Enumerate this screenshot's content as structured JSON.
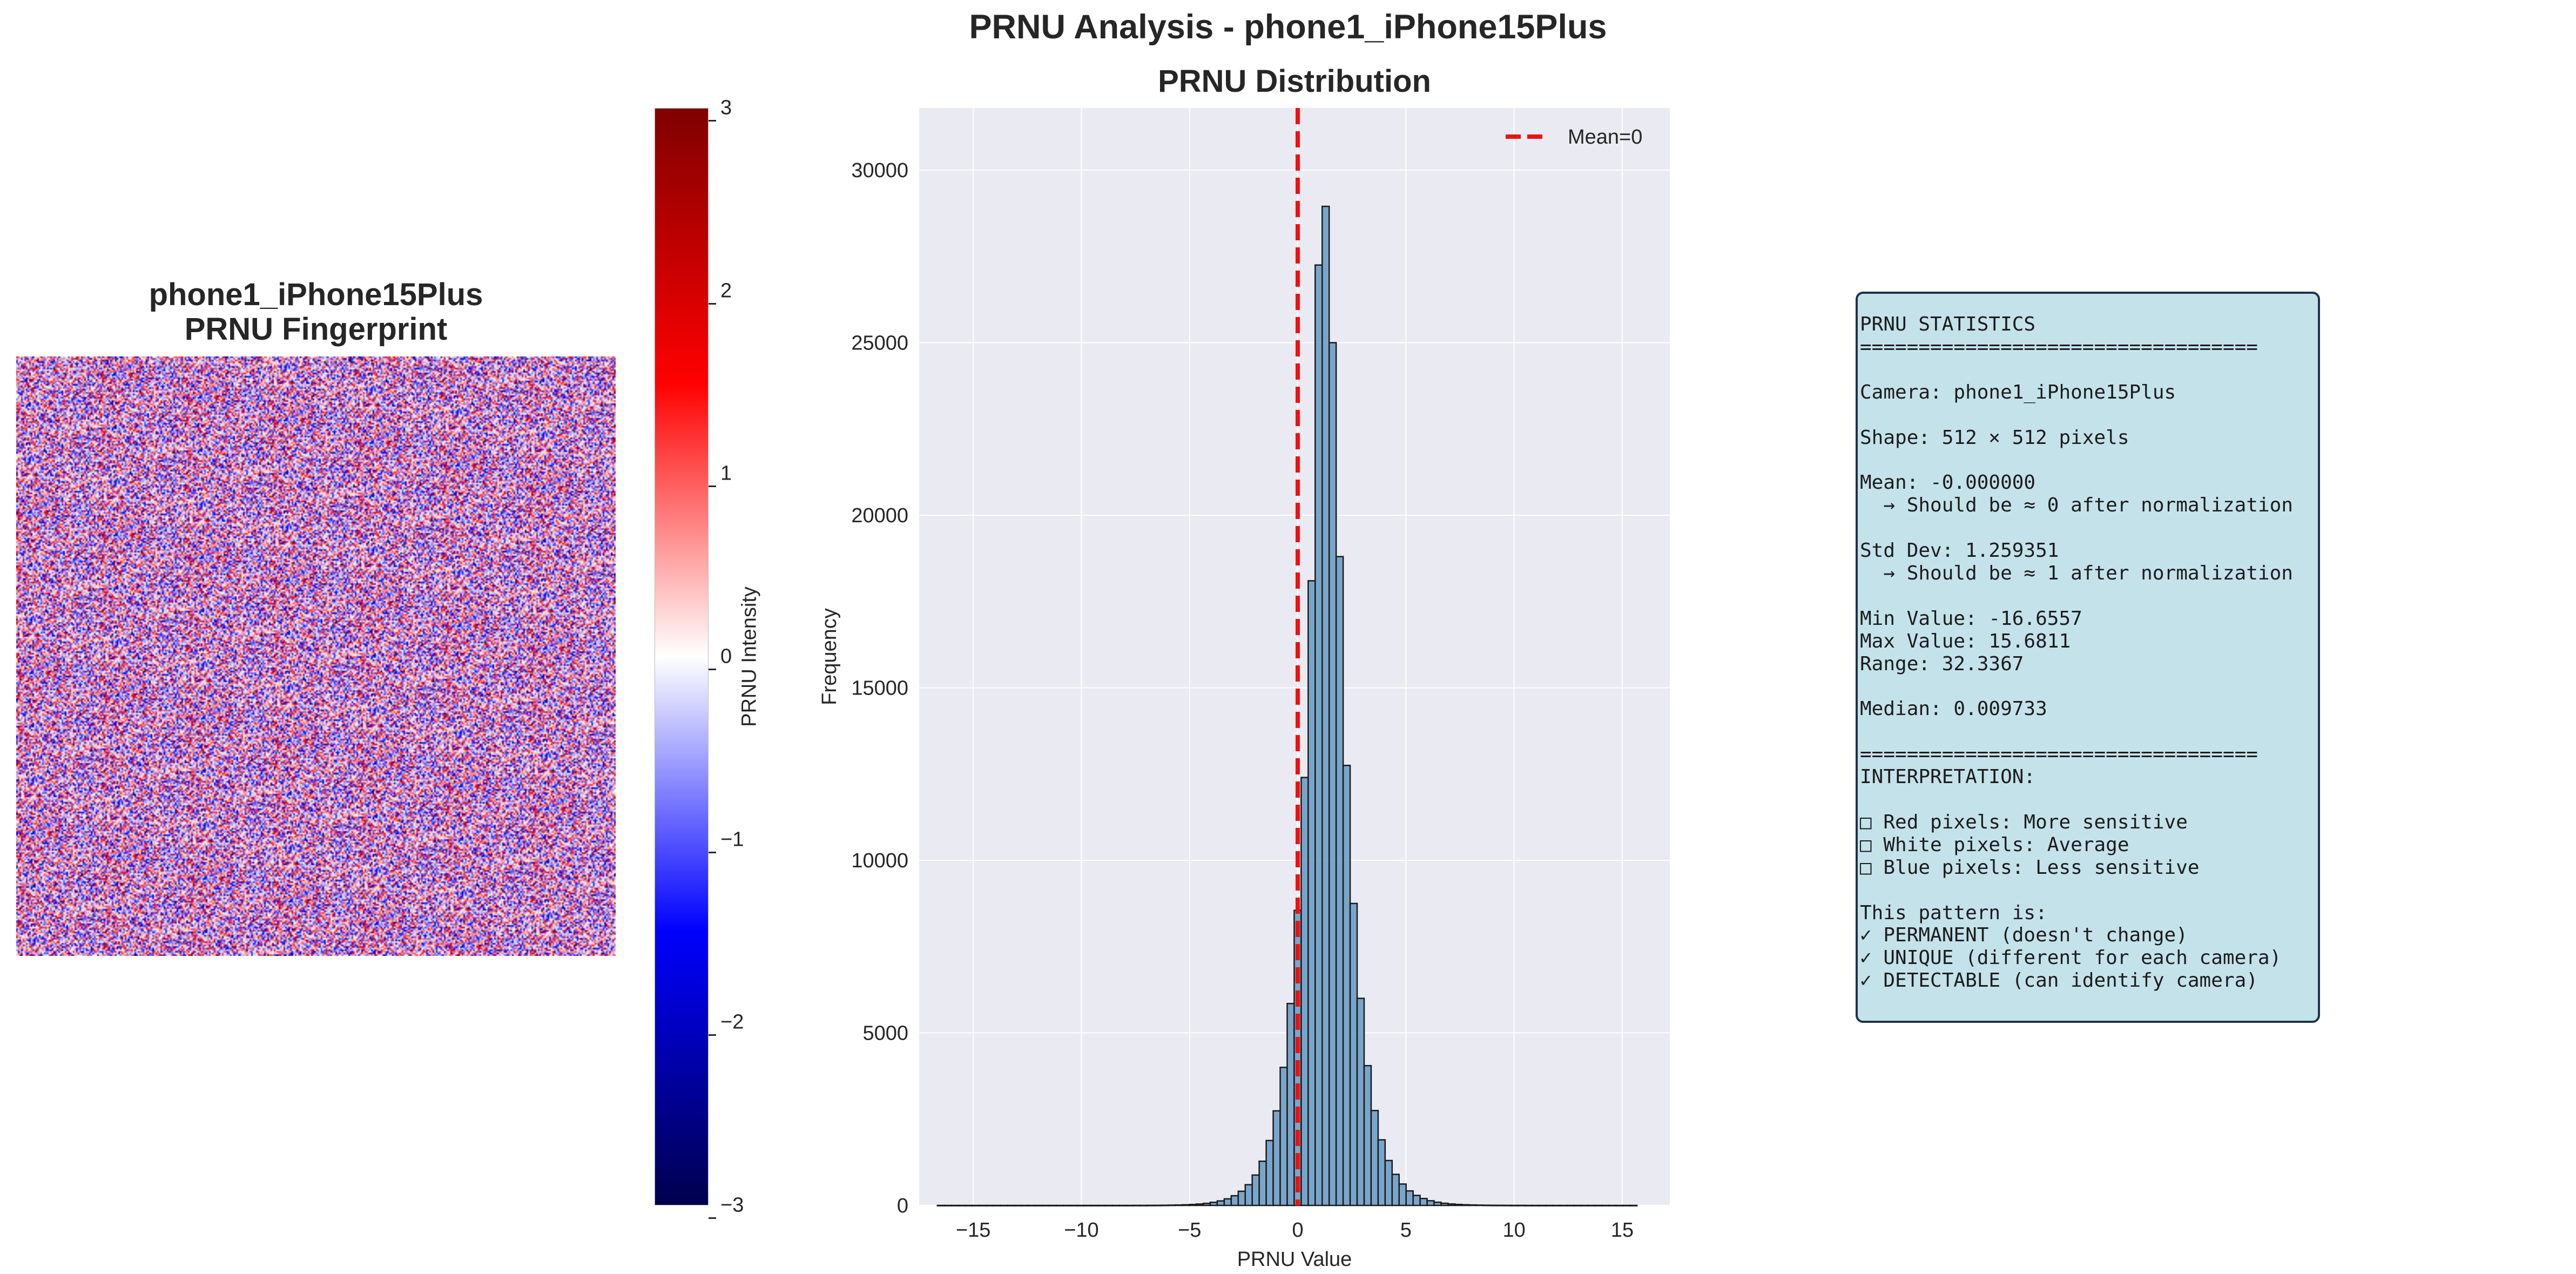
{
  "suptitle": "PRNU Analysis - phone1_iPhone15Plus",
  "fingerprint": {
    "title_line1": "phone1_iPhone15Plus",
    "title_line2": "PRNU Fingerprint",
    "colormap": "seismic",
    "value_range": [
      -3,
      3
    ]
  },
  "colorbar": {
    "label": "PRNU Intensity",
    "ticks": [
      "3",
      "2",
      "1",
      "0",
      "−1",
      "−2",
      "−3"
    ],
    "colors": {
      "top": "#800000",
      "upper": "#ff0000",
      "middle": "#ffffff",
      "lower": "#0000ff",
      "bottom": "#00004d"
    }
  },
  "chart_data": {
    "type": "bar",
    "title": "PRNU Distribution",
    "xlabel": "PRNU Value",
    "ylabel": "Frequency",
    "xlim": [
      -17.5,
      17.2
    ],
    "ylim": [
      0,
      31800
    ],
    "x_ticks": [
      -15,
      -10,
      -5,
      0,
      5,
      10,
      15
    ],
    "x_tick_labels": [
      "−15",
      "−10",
      "−5",
      "0",
      "5",
      "10",
      "15"
    ],
    "y_ticks": [
      0,
      5000,
      10000,
      15000,
      20000,
      25000,
      30000
    ],
    "y_tick_labels": [
      "0",
      "5000",
      "10000",
      "15000",
      "20000",
      "25000",
      "30000"
    ],
    "grid": true,
    "bar_color": "#6d9dc5",
    "bar_edge_color": "#1a1a1a",
    "background": "#eaeaf2",
    "bin_range": [
      -16.6557,
      15.6811
    ],
    "bins": 100,
    "values": [
      0,
      0,
      0,
      0,
      0,
      0,
      0,
      0,
      0,
      0,
      0,
      0,
      0,
      0,
      0,
      0,
      0,
      0,
      0,
      0,
      0,
      0,
      0,
      0,
      0,
      0,
      0,
      0,
      1,
      1,
      2,
      3,
      5,
      8,
      12,
      18,
      27,
      40,
      60,
      90,
      130,
      190,
      280,
      410,
      600,
      880,
      1280,
      1880,
      2740,
      4000,
      5850,
      8550,
      12400,
      18100,
      27250,
      28950,
      25000,
      18800,
      12750,
      8750,
      6000,
      4050,
      2750,
      1900,
      1300,
      900,
      620,
      420,
      290,
      200,
      135,
      92,
      62,
      42,
      28,
      19,
      13,
      9,
      6,
      4,
      3,
      2,
      1,
      1,
      0,
      0,
      0,
      0,
      0,
      0,
      0,
      0,
      0,
      0,
      0,
      0,
      0,
      0,
      0,
      0
    ],
    "reference_line": {
      "x": 0,
      "label": "Mean=0",
      "color": "#ee1111",
      "style": "dashed"
    },
    "legend_placement": "top-right"
  },
  "stats_text": "PRNU STATISTICS\n==================================\n\nCamera: phone1_iPhone15Plus\n\nShape: 512 × 512 pixels\n\nMean: -0.000000\n  → Should be ≈ 0 after normalization\n\nStd Dev: 1.259351\n  → Should be ≈ 1 after normalization\n\nMin Value: -16.6557\nMax Value: 15.6811\nRange: 32.3367\n\nMedian: 0.009733\n\n==================================\nINTERPRETATION:\n\n□ Red pixels: More sensitive\n□ White pixels: Average\n□ Blue pixels: Less sensitive\n\nThis pattern is:\n✓ PERMANENT (doesn't change)\n✓ UNIQUE (different for each camera)\n✓ DETECTABLE (can identify camera)"
}
